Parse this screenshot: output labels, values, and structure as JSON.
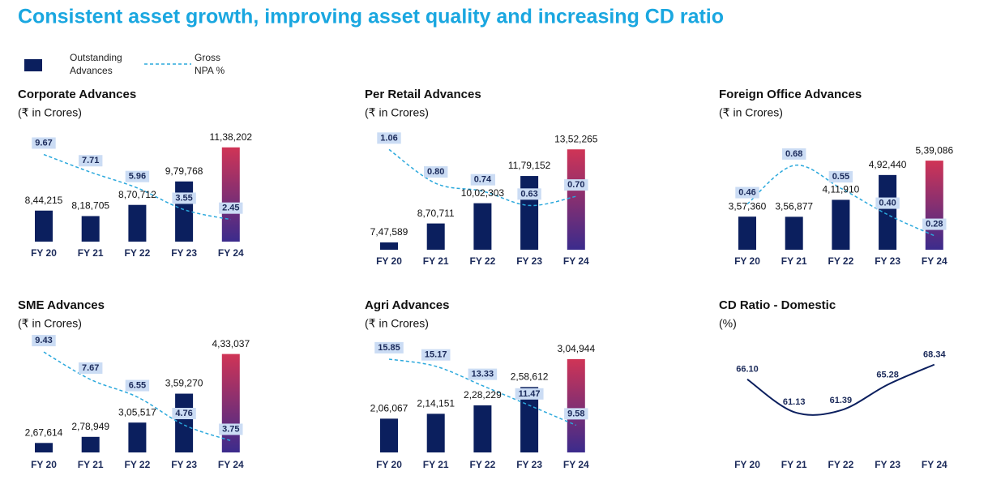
{
  "title": "Consistent asset growth, improving asset quality and increasing CD ratio",
  "legend": [
    {
      "name": "Outstanding Advances",
      "color": "#0b1f5e"
    },
    {
      "name": "Gross NPA %",
      "color": "#2aa8dc"
    }
  ],
  "chart_data": [
    {
      "type": "bar",
      "title": "Corporate Advances",
      "subtitle": "(₹ in Crores)",
      "categories": [
        "FY 20",
        "FY 21",
        "FY 22",
        "FY 23",
        "FY 24"
      ],
      "ylim": [
        700000,
        1190000
      ],
      "y2lim": [
        0,
        11.7
      ],
      "highlight_gradient": [
        "#d03456",
        "#3b2b8c"
      ],
      "series": [
        {
          "type": "bar",
          "color": "#0b1f5e",
          "values": [
            844215,
            818705,
            870712,
            979768,
            1138202
          ],
          "value_labels": [
            "8,44,215",
            "8,18,705",
            "8,70,712",
            "9,79,768",
            "11,38,202"
          ]
        },
        {
          "type": "line",
          "axis": "y2",
          "color": "#2aa8dc",
          "dashed": true,
          "values": [
            9.67,
            7.71,
            5.96,
            3.55,
            2.45
          ]
        }
      ]
    },
    {
      "type": "bar",
      "title": "Per Retail Advances",
      "subtitle": "(₹ in Crores)",
      "categories": [
        "FY 20",
        "FY 21",
        "FY 22",
        "FY 23",
        "FY 24"
      ],
      "ylim": [
        700000,
        1385000
      ],
      "y2lim": [
        0.29,
        1.1
      ],
      "highlight_gradient": [
        "#d03456",
        "#3b2b8c"
      ],
      "series": [
        {
          "type": "bar",
          "color": "#0b1f5e",
          "values": [
            747589,
            870711,
            1002303,
            1179152,
            1352265
          ],
          "value_labels": [
            "7,47,589",
            "8,70,711",
            "10,02,303",
            "11,79,152",
            "13,52,265"
          ]
        },
        {
          "type": "line",
          "axis": "y2",
          "color": "#2aa8dc",
          "dashed": true,
          "values": [
            1.06,
            0.8,
            0.74,
            0.63,
            0.7
          ],
          "value_labels": [
            "1.06",
            "0.80",
            "0.74",
            "0.63",
            "0.70"
          ]
        }
      ]
    },
    {
      "type": "bar",
      "title": "Foreign Office Advances",
      "subtitle": "(₹ in Crores)",
      "categories": [
        "FY 20",
        "FY 21",
        "FY 22",
        "FY 23",
        "FY 24"
      ],
      "ylim": [
        250000,
        592000
      ],
      "y2lim": [
        0.2,
        0.8
      ],
      "highlight_gradient": [
        "#d03456",
        "#3b2b8c"
      ],
      "series": [
        {
          "type": "bar",
          "color": "#0b1f5e",
          "values": [
            357360,
            356877,
            411910,
            492440,
            539086
          ],
          "value_labels": [
            "3,57,360",
            "3,56,877",
            "4,11,910",
            "4,92,440",
            "5,39,086"
          ]
        },
        {
          "type": "line",
          "axis": "y2",
          "color": "#2aa8dc",
          "dashed": true,
          "values": [
            0.46,
            0.68,
            0.55,
            0.4,
            0.28
          ],
          "value_labels": [
            "0.46",
            "0.68",
            "0.55",
            "0.40",
            "0.28"
          ]
        }
      ]
    },
    {
      "type": "bar",
      "title": "SME Advances",
      "subtitle": "(₹ in Crores)",
      "categories": [
        "FY 20",
        "FY 21",
        "FY 22",
        "FY 23",
        "FY 24"
      ],
      "ylim": [
        250000,
        446000
      ],
      "y2lim": [
        3,
        9.75
      ],
      "highlight_gradient": [
        "#d03456",
        "#3b2b8c"
      ],
      "series": [
        {
          "type": "bar",
          "color": "#0b1f5e",
          "values": [
            267614,
            278949,
            305517,
            359270,
            433037
          ],
          "value_labels": [
            "2,67,614",
            "2,78,949",
            "3,05,517",
            "3,59,270",
            "4,33,037"
          ]
        },
        {
          "type": "line",
          "axis": "y2",
          "color": "#2aa8dc",
          "dashed": true,
          "values": [
            9.43,
            7.67,
            6.55,
            4.76,
            3.75
          ]
        }
      ]
    },
    {
      "type": "bar",
      "title": "Agri Advances",
      "subtitle": "(₹ in Crores)",
      "categories": [
        "FY 20",
        "FY 21",
        "FY 22",
        "FY 23",
        "FY 24"
      ],
      "ylim": [
        150000,
        325000
      ],
      "y2lim": [
        7,
        17
      ],
      "highlight_gradient": [
        "#d03456",
        "#3b2b8c"
      ],
      "series": [
        {
          "type": "bar",
          "color": "#0b1f5e",
          "values": [
            206067,
            214151,
            228229,
            258612,
            304944
          ],
          "value_labels": [
            "2,06,067",
            "2,14,151",
            "2,28,229",
            "2,58,612",
            "3,04,944"
          ]
        },
        {
          "type": "line",
          "axis": "y2",
          "color": "#2aa8dc",
          "dashed": true,
          "values": [
            15.85,
            15.17,
            13.33,
            11.47,
            9.58
          ]
        }
      ]
    },
    {
      "type": "line",
      "title": "CD Ratio - Domestic",
      "subtitle": "(%)",
      "categories": [
        "FY 20",
        "FY 21",
        "FY 22",
        "FY 23",
        "FY 24"
      ],
      "ylim": [
        55,
        71
      ],
      "series": [
        {
          "type": "line",
          "color": "#0b1f5e",
          "values": [
            66.1,
            61.13,
            61.39,
            65.28,
            68.34
          ],
          "value_labels": [
            "66.10",
            "61.13",
            "61.39",
            "65.28",
            "68.34"
          ]
        }
      ]
    }
  ]
}
